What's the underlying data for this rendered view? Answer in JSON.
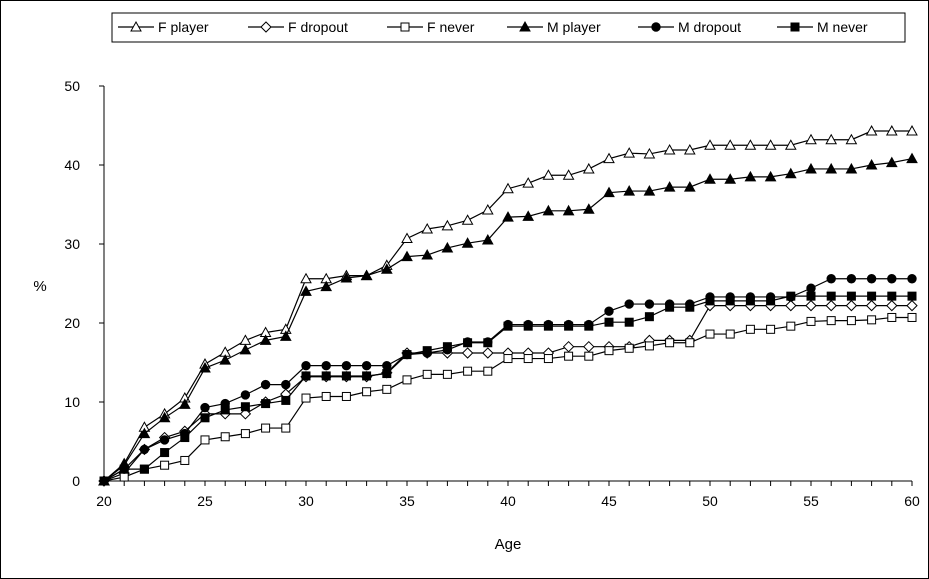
{
  "chart_data": {
    "type": "line",
    "title": "",
    "xlabel": "Age",
    "ylabel": "%",
    "xlim": [
      20,
      60
    ],
    "ylim": [
      0,
      50
    ],
    "x_ticks": [
      20,
      25,
      30,
      35,
      40,
      45,
      50,
      55,
      60
    ],
    "y_ticks": [
      0,
      10,
      20,
      30,
      40,
      50
    ],
    "grid": false,
    "legend_position": "top",
    "x": [
      20,
      21,
      22,
      23,
      24,
      25,
      26,
      27,
      28,
      29,
      30,
      31,
      32,
      33,
      34,
      35,
      36,
      37,
      38,
      39,
      40,
      41,
      42,
      43,
      44,
      45,
      46,
      47,
      48,
      49,
      50,
      51,
      52,
      53,
      54,
      55,
      56,
      57,
      58,
      59,
      60
    ],
    "series": [
      {
        "name": "F player",
        "marker": "open-triangle",
        "values": [
          0,
          2.2,
          6.8,
          8.5,
          10.5,
          14.8,
          16.3,
          17.8,
          18.8,
          19.2,
          25.6,
          25.6,
          26.0,
          26.0,
          27.3,
          30.7,
          31.9,
          32.3,
          33.0,
          34.3,
          37.0,
          37.7,
          38.7,
          38.7,
          39.5,
          40.8,
          41.5,
          41.4,
          41.9,
          41.9,
          42.5,
          42.5,
          42.5,
          42.5,
          42.5,
          43.2,
          43.2,
          43.2,
          44.3,
          44.3,
          44.3
        ]
      },
      {
        "name": "F dropout",
        "marker": "open-diamond",
        "values": [
          0,
          1.0,
          4.0,
          5.5,
          6.3,
          8.5,
          8.5,
          8.5,
          10.0,
          11.0,
          13.2,
          13.2,
          13.2,
          13.2,
          13.7,
          16.2,
          16.2,
          16.2,
          16.2,
          16.2,
          16.2,
          16.2,
          16.2,
          17.0,
          17.0,
          17.0,
          17.0,
          17.8,
          17.8,
          17.8,
          22.2,
          22.2,
          22.2,
          22.2,
          22.2,
          22.2,
          22.2,
          22.2,
          22.2,
          22.2,
          22.2
        ]
      },
      {
        "name": "F never",
        "marker": "open-square",
        "values": [
          0,
          0.5,
          1.5,
          2.0,
          2.6,
          5.2,
          5.6,
          6.0,
          6.7,
          6.7,
          10.5,
          10.7,
          10.7,
          11.3,
          11.6,
          12.8,
          13.5,
          13.5,
          13.9,
          13.9,
          15.5,
          15.5,
          15.5,
          15.8,
          15.8,
          16.5,
          16.8,
          17.1,
          17.5,
          17.5,
          18.6,
          18.6,
          19.2,
          19.2,
          19.6,
          20.2,
          20.3,
          20.3,
          20.4,
          20.7,
          20.7
        ]
      },
      {
        "name": "M player",
        "marker": "filled-triangle",
        "values": [
          0,
          2.0,
          6.0,
          8.0,
          9.7,
          14.3,
          15.3,
          16.6,
          17.8,
          18.3,
          24.0,
          24.6,
          25.7,
          26.0,
          26.8,
          28.4,
          28.6,
          29.5,
          30.1,
          30.5,
          33.4,
          33.5,
          34.2,
          34.2,
          34.4,
          36.5,
          36.7,
          36.7,
          37.2,
          37.2,
          38.2,
          38.2,
          38.5,
          38.5,
          38.9,
          39.5,
          39.5,
          39.5,
          40.0,
          40.3,
          40.8
        ]
      },
      {
        "name": "M dropout",
        "marker": "filled-circle",
        "values": [
          0,
          1.5,
          4.0,
          5.2,
          6.0,
          9.3,
          9.8,
          10.9,
          12.2,
          12.2,
          14.6,
          14.6,
          14.6,
          14.6,
          14.6,
          16.0,
          16.2,
          16.6,
          17.6,
          17.6,
          19.8,
          19.8,
          19.8,
          19.8,
          19.8,
          21.5,
          22.4,
          22.4,
          22.4,
          22.4,
          23.3,
          23.3,
          23.3,
          23.3,
          23.3,
          24.4,
          25.6,
          25.6,
          25.6,
          25.6,
          25.6
        ]
      },
      {
        "name": "M never",
        "marker": "filled-square",
        "values": [
          0,
          1.5,
          1.5,
          3.6,
          5.5,
          8.0,
          9.0,
          9.4,
          9.8,
          10.2,
          13.3,
          13.3,
          13.3,
          13.3,
          13.6,
          16.0,
          16.5,
          17.0,
          17.5,
          17.5,
          19.6,
          19.6,
          19.6,
          19.6,
          19.6,
          20.1,
          20.1,
          20.8,
          22.0,
          22.0,
          22.8,
          22.8,
          22.8,
          22.8,
          23.4,
          23.4,
          23.4,
          23.4,
          23.4,
          23.4,
          23.4
        ]
      }
    ]
  }
}
